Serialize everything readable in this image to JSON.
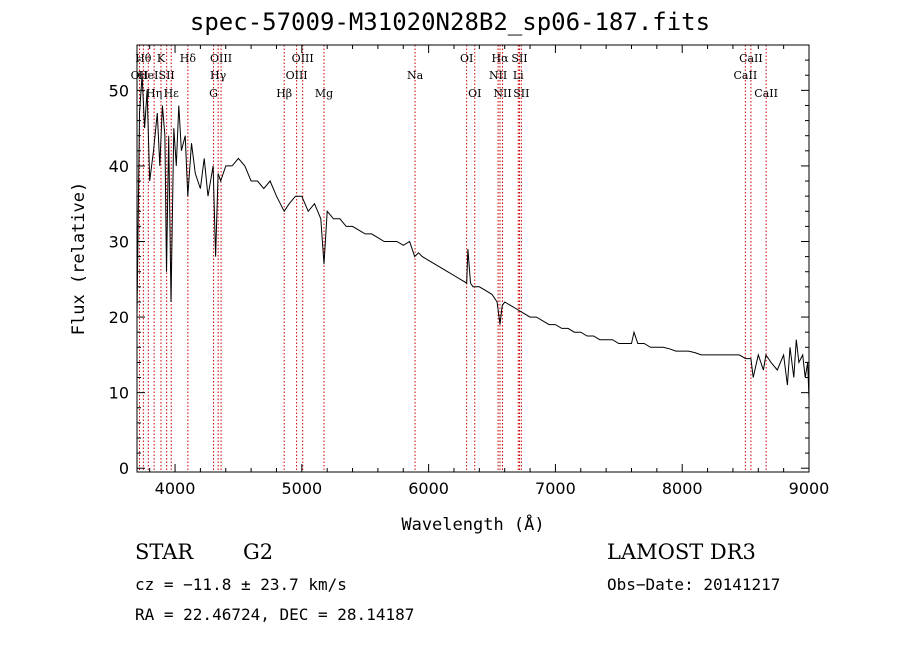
{
  "chart_data": {
    "type": "line",
    "title": "spec-57009-M31020N28B2_sp06-187.fits",
    "xlabel": "Wavelength (Å)",
    "ylabel": "Flux (relative)",
    "xlim": [
      3700,
      9000
    ],
    "ylim": [
      -0.5,
      56
    ],
    "xticks": [
      4000,
      5000,
      6000,
      7000,
      8000,
      9000
    ],
    "yticks": [
      0,
      10,
      20,
      30,
      40,
      50
    ],
    "series": [
      {
        "name": "flux",
        "x": [
          3700,
          3720,
          3740,
          3760,
          3780,
          3800,
          3830,
          3860,
          3880,
          3900,
          3920,
          3933,
          3950,
          3968,
          3990,
          4010,
          4030,
          4050,
          4080,
          4101,
          4130,
          4160,
          4200,
          4230,
          4260,
          4300,
          4320,
          4340,
          4360,
          4400,
          4450,
          4500,
          4550,
          4600,
          4650,
          4700,
          4750,
          4800,
          4861,
          4900,
          4950,
          5000,
          5050,
          5100,
          5150,
          5175,
          5200,
          5250,
          5300,
          5350,
          5400,
          5450,
          5500,
          5550,
          5600,
          5650,
          5700,
          5750,
          5800,
          5850,
          5890,
          5920,
          5950,
          6000,
          6050,
          6100,
          6150,
          6200,
          6250,
          6300,
          6310,
          6330,
          6350,
          6400,
          6450,
          6500,
          6540,
          6563,
          6580,
          6600,
          6650,
          6700,
          6750,
          6800,
          6850,
          6900,
          6950,
          7000,
          7050,
          7100,
          7150,
          7200,
          7250,
          7300,
          7350,
          7400,
          7450,
          7500,
          7550,
          7600,
          7620,
          7650,
          7700,
          7750,
          7800,
          7850,
          7900,
          7950,
          8000,
          8050,
          8100,
          8150,
          8200,
          8250,
          8300,
          8350,
          8400,
          8450,
          8500,
          8542,
          8560,
          8600,
          8640,
          8660,
          8700,
          8750,
          8800,
          8830,
          8850,
          8880,
          8900,
          8920,
          8950,
          8970,
          8990,
          9000
        ],
        "y": [
          20,
          47,
          52,
          45,
          50,
          38,
          42,
          47,
          40,
          48,
          44,
          26,
          44,
          22,
          45,
          40,
          48,
          42,
          44,
          36,
          43,
          39,
          37,
          41,
          36,
          40,
          28,
          39,
          38,
          40,
          40,
          41,
          40,
          38,
          38,
          37,
          38,
          36,
          34,
          35,
          36,
          36,
          34,
          35,
          33,
          27,
          34,
          33,
          33,
          32,
          32,
          31.5,
          31,
          31,
          30.5,
          30,
          30,
          30,
          29.5,
          30,
          28,
          28.5,
          28,
          27.5,
          27,
          26.5,
          26,
          25.5,
          25,
          24.5,
          29,
          24.5,
          24,
          24,
          23.5,
          23,
          22,
          19,
          21.5,
          22,
          21.5,
          21,
          20.5,
          20,
          20,
          19.5,
          19,
          19,
          18.5,
          18.5,
          18,
          18,
          17.5,
          17.5,
          17,
          17,
          17,
          16.5,
          16.5,
          16.5,
          18,
          16.5,
          16.5,
          16,
          16,
          16,
          15.8,
          15.5,
          15.5,
          15.5,
          15.3,
          15,
          15,
          15,
          15,
          15,
          15,
          15,
          14.5,
          14.5,
          12,
          15,
          13,
          15,
          14,
          13,
          15,
          11,
          16,
          12,
          17,
          14,
          15,
          12,
          14,
          9
        ]
      }
    ],
    "line_color": "#000000",
    "marker_color": "#cc0000",
    "lines": [
      {
        "w": 3720,
        "label": "OII",
        "row": 2
      },
      {
        "w": 3750,
        "label": "Hθ",
        "row": 1
      },
      {
        "w": 3789,
        "label": "HeI",
        "row": 2
      },
      {
        "w": 3835,
        "label": "Hη",
        "row": 3
      },
      {
        "w": 3889,
        "label": "K",
        "row": 1
      },
      {
        "w": 3934,
        "label": "SII",
        "row": 2
      },
      {
        "w": 3970,
        "label": "Hε",
        "row": 3
      },
      {
        "w": 4101,
        "label": "Hδ",
        "row": 1
      },
      {
        "w": 4304,
        "label": "G",
        "row": 3
      },
      {
        "w": 4340,
        "label": "Hγ",
        "row": 2
      },
      {
        "w": 4363,
        "label": "OIII",
        "row": 1
      },
      {
        "w": 4861,
        "label": "Hβ",
        "row": 3
      },
      {
        "w": 4959,
        "label": "OIII",
        "row": 2
      },
      {
        "w": 5007,
        "label": "OIII",
        "row": 1
      },
      {
        "w": 5175,
        "label": "Mg",
        "row": 3
      },
      {
        "w": 5893,
        "label": "Na",
        "row": 2
      },
      {
        "w": 6300,
        "label": "OI",
        "row": 1
      },
      {
        "w": 6364,
        "label": "OI",
        "row": 3
      },
      {
        "w": 6548,
        "label": "NII",
        "row": 2
      },
      {
        "w": 6563,
        "label": "Hα",
        "row": 1
      },
      {
        "w": 6583,
        "label": "NII",
        "row": 3
      },
      {
        "w": 6707,
        "label": "Li",
        "row": 2
      },
      {
        "w": 6717,
        "label": "SII",
        "row": 1
      },
      {
        "w": 6731,
        "label": "SII",
        "row": 3
      },
      {
        "w": 8498,
        "label": "CaII",
        "row": 2
      },
      {
        "w": 8542,
        "label": "CaII",
        "row": 1
      },
      {
        "w": 8662,
        "label": "CaII",
        "row": 3
      }
    ]
  },
  "info": {
    "class": "STAR",
    "subclass": "G2",
    "survey": "LAMOST DR3",
    "cz": "cz = −11.8 ± 23.7 km/s",
    "obs_date": "Obs−Date: 20141217",
    "coords": "RA =  22.46724, DEC =  28.14187"
  }
}
